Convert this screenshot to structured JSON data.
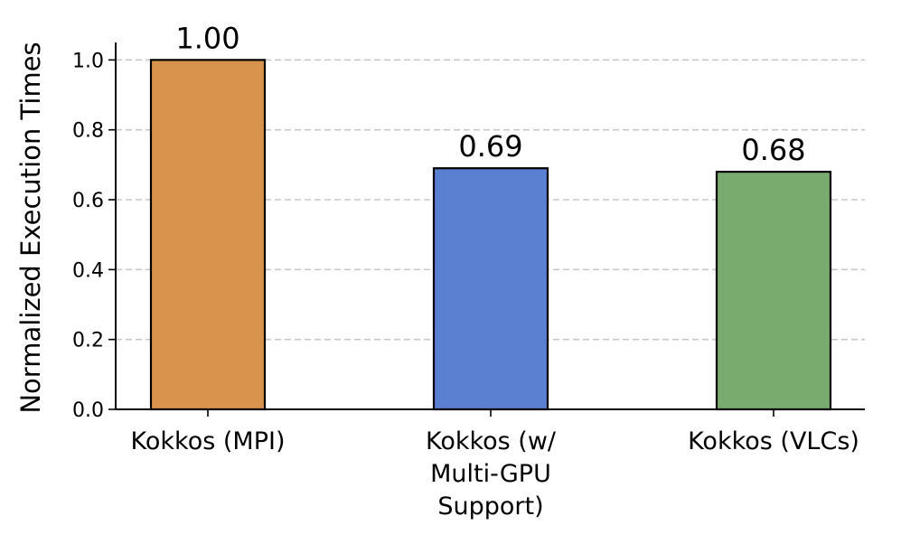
{
  "chart_data": {
    "type": "bar",
    "title": "",
    "xlabel": "",
    "ylabel": "Normalized Execution Times",
    "categories": [
      [
        "Kokkos (MPI)"
      ],
      [
        "Kokkos (w/",
        "Multi-GPU",
        "Support)"
      ],
      [
        "Kokkos (VLCs)"
      ]
    ],
    "values": [
      1.0,
      0.69,
      0.68
    ],
    "value_labels": [
      "1.00",
      "0.69",
      "0.68"
    ],
    "bar_colors": [
      "#d8944c",
      "#5b7fd1",
      "#7aab6e"
    ],
    "edge_color": "#000000",
    "ylim": [
      0,
      1.05
    ],
    "yticks": [
      0.0,
      0.2,
      0.4,
      0.6,
      0.8,
      1.0
    ],
    "ytick_labels": [
      "0.0",
      "0.2",
      "0.4",
      "0.6",
      "0.8",
      "1.0"
    ],
    "grid": {
      "axis": "y",
      "style": "dashed",
      "color": "#c8c8c8"
    }
  }
}
